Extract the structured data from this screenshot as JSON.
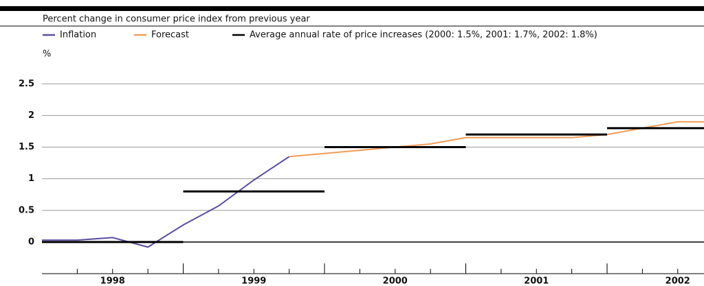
{
  "chart_data": {
    "type": "line",
    "subtitle": "Percent change in consumer price index from previous year",
    "y_label": "%",
    "xlim": [
      1998,
      2002.686
    ],
    "xticks": [
      {
        "value": 1998.5,
        "label": "1998"
      },
      {
        "value": 1999.5,
        "label": "1999"
      },
      {
        "value": 2000.5,
        "label": "2000"
      },
      {
        "value": 2001.5,
        "label": "2001"
      },
      {
        "value": 2002.5,
        "label": "2002"
      }
    ],
    "ylim": [
      -0.5,
      2.85
    ],
    "yticks": [
      0,
      0.5,
      1,
      1.5,
      2,
      2.5
    ],
    "grid": true,
    "series": [
      {
        "name": "Inflation",
        "color": "#5a4d9e",
        "x": [
          1998,
          1998.25,
          1998.5,
          1998.75,
          1999,
          1999.25,
          1999.5,
          1999.75
        ],
        "values": [
          0.03,
          0.03,
          0.07,
          -0.08,
          0.27,
          0.57,
          0.98,
          1.35
        ]
      },
      {
        "name": "Forecast",
        "color": "#f29a55",
        "x": [
          1999.75,
          2000,
          2000.25,
          2000.5,
          2000.75,
          2001,
          2001.25,
          2001.5,
          2001.75,
          2002,
          2002.25,
          2002.5,
          2002.75
        ],
        "values": [
          1.35,
          1.4,
          1.45,
          1.5,
          1.55,
          1.65,
          1.65,
          1.65,
          1.65,
          1.7,
          1.8,
          1.9,
          1.9
        ]
      },
      {
        "name": "Average annual rate of price increases (2000: 1.5%, 2001: 1.7%, 2002: 1.8%)",
        "color": "#000000",
        "step": true,
        "x": [
          1998,
          1999,
          2000,
          2001,
          2002
        ],
        "values": [
          0,
          0.8,
          1.5,
          1.7,
          1.8
        ]
      }
    ]
  }
}
